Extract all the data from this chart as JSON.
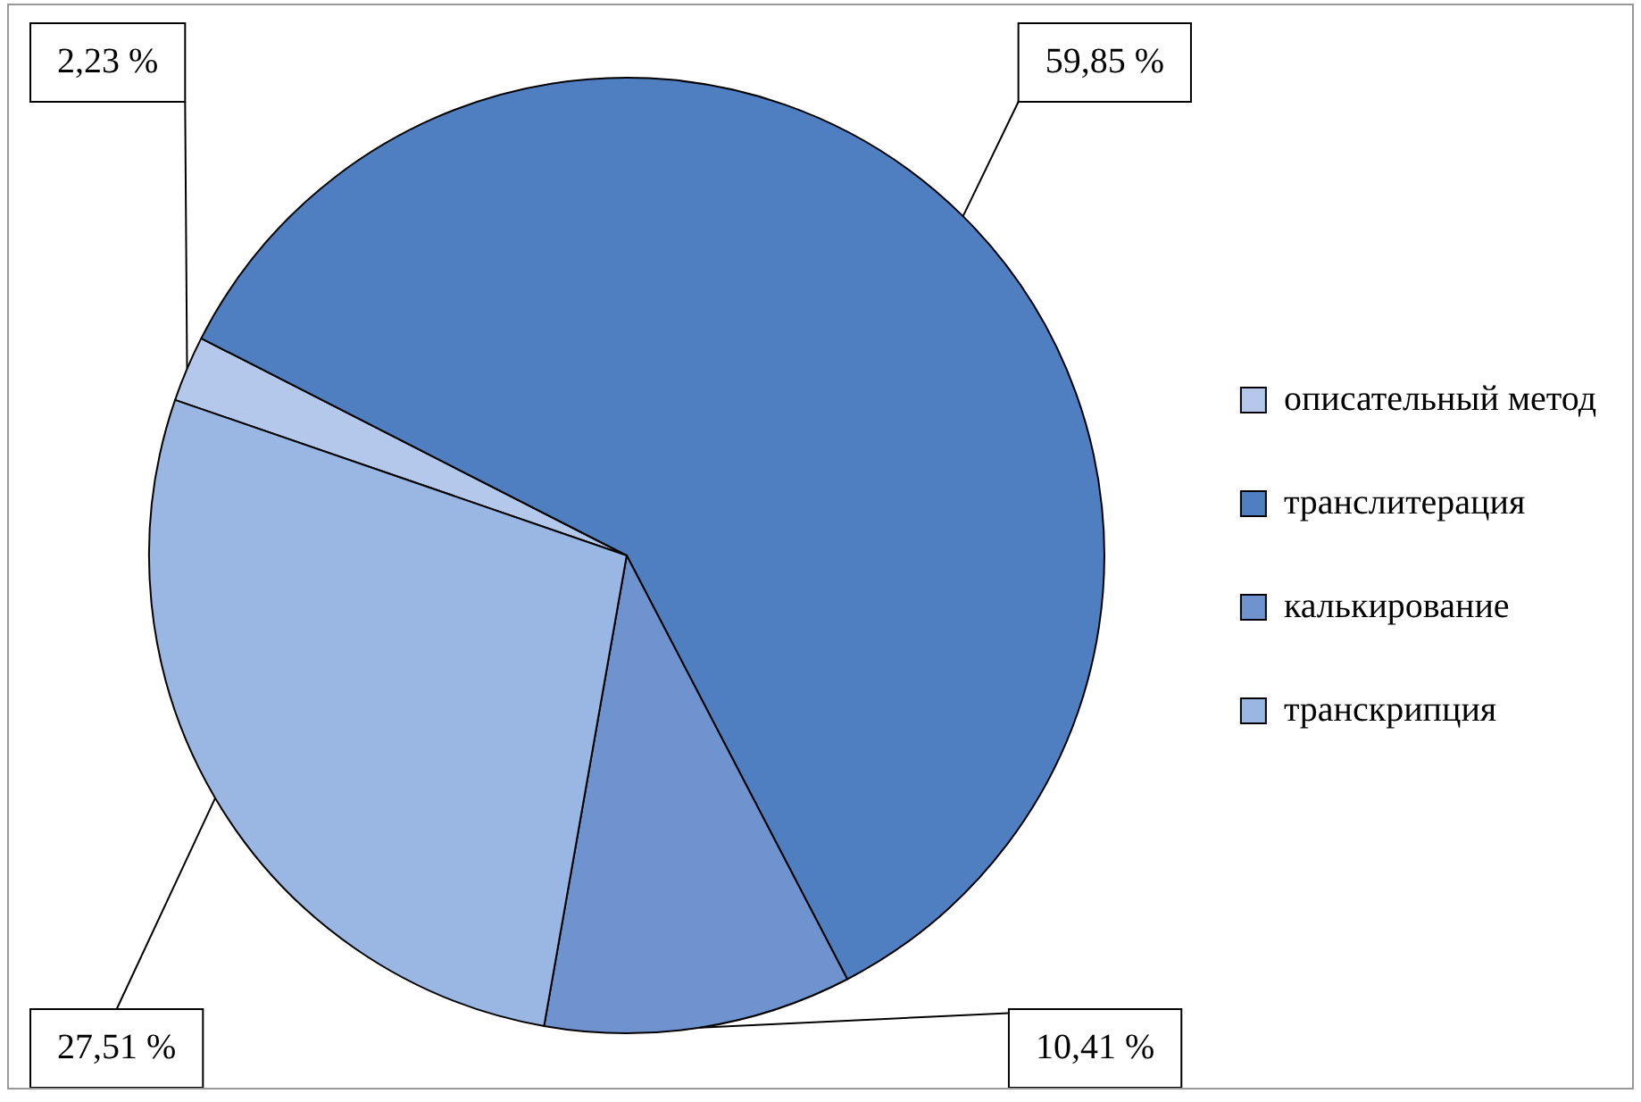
{
  "chart_data": {
    "type": "pie",
    "categories": [
      "описательный метод",
      "транслитерация",
      "калькирование",
      "транскрипция"
    ],
    "values": [
      2.23,
      59.85,
      10.41,
      27.51
    ],
    "colors": [
      "#b3c8ea",
      "#4f7fc0",
      "#6e93cf",
      "#9ab6e2"
    ],
    "value_labels": [
      "2,23 %",
      "59,85 %",
      "10,41 %",
      "27,51 %"
    ],
    "legend": "right"
  }
}
